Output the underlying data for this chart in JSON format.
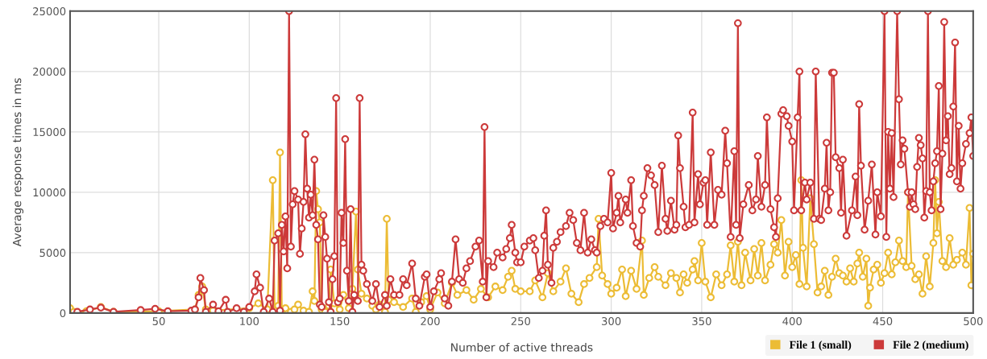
{
  "chart_data": {
    "type": "line",
    "xlabel": "Number of active threads",
    "ylabel": "Average response times in ms",
    "xlim": [
      1,
      500
    ],
    "xticks": [
      50,
      100,
      150,
      200,
      250,
      300,
      350,
      400,
      450,
      500
    ],
    "ylim": [
      0,
      25000
    ],
    "yticks": [
      0,
      5000,
      10000,
      15000,
      20000,
      25000
    ],
    "grid": true,
    "legend": "bottom right",
    "marker": "circle",
    "line_style": "solid",
    "series": [
      {
        "name": "File 1 (small)",
        "color": "#ecbc35",
        "x": [
          1,
          3,
          10,
          18,
          25,
          50,
          70,
          72,
          74,
          76,
          80,
          100,
          105,
          110,
          113,
          114,
          116,
          117,
          118,
          120,
          123,
          125,
          127,
          130,
          133,
          135,
          136,
          137,
          138,
          139,
          140,
          142,
          144,
          145,
          147,
          150,
          152,
          155,
          157,
          159,
          160,
          162,
          165,
          168,
          170,
          172,
          175,
          176,
          177,
          180,
          185,
          190,
          192,
          195,
          198,
          200,
          204,
          208,
          212,
          215,
          220,
          224,
          228,
          232,
          236,
          240,
          243,
          245,
          247,
          250,
          255,
          258,
          262,
          265,
          268,
          272,
          275,
          278,
          282,
          285,
          288,
          292,
          293,
          295,
          298,
          300,
          303,
          306,
          308,
          311,
          314,
          317,
          318,
          321,
          324,
          326,
          330,
          333,
          336,
          338,
          340,
          342,
          345,
          346,
          348,
          350,
          352,
          355,
          358,
          361,
          364,
          366,
          368,
          370,
          372,
          374,
          377,
          379,
          381,
          383,
          385,
          388,
          390,
          392,
          394,
          396,
          398,
          400,
          402,
          404,
          405,
          406,
          408,
          410,
          412,
          414,
          416,
          418,
          420,
          422,
          424,
          426,
          428,
          430,
          432,
          434,
          436,
          437,
          439,
          441,
          442,
          443,
          445,
          447,
          449,
          451,
          453,
          455,
          457,
          459,
          461,
          463,
          464,
          466,
          468,
          470,
          472,
          474,
          476,
          478,
          479,
          480,
          481,
          483,
          485,
          487,
          489,
          491,
          494,
          496,
          498,
          499,
          500
        ],
        "values": [
          400,
          100,
          150,
          500,
          100,
          150,
          300,
          1500,
          2200,
          300,
          200,
          400,
          800,
          300,
          11000,
          200,
          600,
          13300,
          200,
          400,
          100,
          300,
          700,
          200,
          100,
          1800,
          1000,
          10100,
          8600,
          7500,
          300,
          100,
          600,
          3600,
          800,
          300,
          1500,
          400,
          2000,
          8400,
          3600,
          1600,
          1200,
          600,
          300,
          700,
          100,
          7800,
          1100,
          900,
          500,
          1200,
          100,
          900,
          1400,
          300,
          1700,
          800,
          2500,
          1500,
          1900,
          1100,
          2000,
          1300,
          2200,
          1900,
          3000,
          3500,
          2000,
          1800,
          1800,
          2700,
          1300,
          3300,
          1800,
          2600,
          3700,
          1600,
          900,
          2400,
          2900,
          3800,
          7800,
          3100,
          2400,
          1600,
          2100,
          3600,
          1400,
          3500,
          2000,
          6000,
          1500,
          2900,
          3800,
          3000,
          2300,
          3300,
          2900,
          1700,
          3200,
          2500,
          3600,
          4300,
          2700,
          5800,
          2600,
          1300,
          3200,
          2300,
          3200,
          5600,
          2600,
          5900,
          2300,
          5000,
          2700,
          5300,
          3100,
          5800,
          2700,
          4000,
          5700,
          5000,
          7700,
          3100,
          5900,
          3800,
          4800,
          2400,
          11000,
          5400,
          2200,
          9500,
          5700,
          1700,
          2200,
          3500,
          1500,
          3000,
          4500,
          3300,
          3100,
          2600,
          3700,
          2600,
          4100,
          5000,
          3000,
          4500,
          600,
          2100,
          3600,
          4000,
          2500,
          3300,
          5000,
          3200,
          4200,
          6000,
          4300,
          3800,
          10000,
          3900,
          2800,
          3200,
          1600,
          4700,
          2200,
          5800,
          11000,
          6600,
          9200,
          4300,
          3800,
          6200,
          4000,
          4400,
          5000,
          4000,
          8700,
          2300,
          4900
        ]
      },
      {
        "name": "File 2 (medium)",
        "color": "#cc3a3a",
        "x": [
          5,
          12,
          18,
          25,
          40,
          48,
          55,
          68,
          70,
          72,
          73,
          75,
          76,
          80,
          83,
          87,
          88,
          93,
          97,
          100,
          103,
          104,
          106,
          108,
          111,
          113,
          114,
          116,
          117,
          118,
          119,
          120,
          121,
          122,
          123,
          124,
          125,
          127,
          128,
          129,
          130,
          131,
          132,
          133,
          134,
          135,
          136,
          137,
          138,
          139,
          140,
          141,
          142,
          143,
          144,
          145,
          146,
          147,
          148,
          149,
          150,
          151,
          152,
          153,
          154,
          155,
          156,
          157,
          158,
          160,
          161,
          162,
          163,
          165,
          168,
          170,
          172,
          175,
          176,
          178,
          180,
          183,
          185,
          187,
          190,
          192,
          194,
          197,
          198,
          200,
          202,
          205,
          206,
          208,
          210,
          212,
          214,
          216,
          218,
          220,
          222,
          225,
          227,
          229,
          230,
          231,
          232,
          235,
          237,
          240,
          242,
          244,
          245,
          247,
          248,
          250,
          252,
          255,
          257,
          258,
          260,
          262,
          263,
          264,
          265,
          267,
          268,
          270,
          272,
          275,
          277,
          279,
          281,
          283,
          285,
          287,
          289,
          291,
          292,
          294,
          296,
          298,
          300,
          301,
          303,
          304,
          305,
          308,
          309,
          311,
          312,
          314,
          316,
          317,
          318,
          320,
          322,
          324,
          326,
          328,
          330,
          331,
          333,
          335,
          336,
          337,
          338,
          340,
          341,
          343,
          345,
          346,
          348,
          349,
          351,
          352,
          353,
          355,
          357,
          359,
          361,
          363,
          364,
          366,
          368,
          369,
          370,
          371,
          373,
          376,
          378,
          380,
          381,
          383,
          385,
          386,
          388,
          390,
          391,
          392,
          394,
          395,
          397,
          398,
          400,
          401,
          403,
          404,
          405,
          407,
          408,
          410,
          412,
          413,
          415,
          416,
          418,
          419,
          420,
          421,
          422,
          423,
          424,
          426,
          427,
          428,
          430,
          433,
          435,
          436,
          437,
          438,
          440,
          442,
          444,
          446,
          447,
          449,
          451,
          452,
          453,
          454,
          455,
          456,
          458,
          459,
          460,
          461,
          462,
          464,
          465,
          466,
          467,
          468,
          469,
          470,
          471,
          472,
          473,
          474,
          475,
          476,
          477,
          478,
          479,
          480,
          481,
          482,
          483,
          484,
          485,
          486,
          487,
          488,
          489,
          490,
          491,
          492,
          493,
          494,
          496,
          498,
          499,
          500
        ],
        "values": [
          100,
          300,
          450,
          100,
          250,
          350,
          150,
          200,
          300,
          1300,
          2900,
          1900,
          100,
          700,
          150,
          1100,
          100,
          400,
          100,
          500,
          1800,
          3200,
          2100,
          100,
          1200,
          100,
          6000,
          6600,
          200,
          7300,
          5100,
          8000,
          3700,
          25000,
          5500,
          9000,
          10100,
          9400,
          4900,
          7000,
          9200,
          14800,
          10300,
          7900,
          9800,
          8100,
          12700,
          7300,
          6100,
          700,
          500,
          8100,
          6300,
          4500,
          900,
          100,
          2800,
          4700,
          17800,
          900,
          1200,
          8300,
          5800,
          14400,
          3500,
          1000,
          8600,
          100,
          1500,
          1000,
          17800,
          4000,
          3500,
          2400,
          1000,
          2400,
          500,
          1500,
          600,
          2800,
          1500,
          1500,
          2800,
          2300,
          4100,
          1200,
          600,
          3000,
          3200,
          500,
          1800,
          2800,
          3300,
          1200,
          600,
          2600,
          6100,
          2800,
          2500,
          3700,
          4300,
          5500,
          6000,
          2600,
          15400,
          1300,
          4300,
          3800,
          5000,
          4600,
          5300,
          6200,
          7300,
          5000,
          4200,
          4200,
          5500,
          6000,
          6200,
          5200,
          2900,
          3500,
          6400,
          8500,
          4000,
          2500,
          5400,
          5900,
          6700,
          7200,
          8300,
          7700,
          5800,
          5200,
          8300,
          5000,
          6100,
          5200,
          5000,
          7200,
          7800,
          7500,
          11600,
          7000,
          8300,
          9700,
          7500,
          9400,
          8300,
          11000,
          7200,
          5800,
          5500,
          8500,
          9700,
          12000,
          11400,
          10600,
          6700,
          12200,
          7800,
          6800,
          9300,
          6900,
          7300,
          14700,
          12000,
          8800,
          7100,
          7300,
          16600,
          7500,
          11500,
          9000,
          10800,
          11000,
          7300,
          13300,
          7300,
          10200,
          9800,
          15100,
          12400,
          6300,
          13400,
          7300,
          24000,
          6200,
          9000,
          10600,
          8500,
          9400,
          13000,
          8800,
          10600,
          16200,
          8600,
          7100,
          6300,
          9500,
          16500,
          16800,
          16300,
          15500,
          14200,
          8500,
          16200,
          20000,
          8500,
          10800,
          9400,
          10800,
          7800,
          20000,
          7800,
          7700,
          10300,
          14100,
          8500,
          10000,
          19900,
          19900,
          12900,
          12000,
          8300,
          12700,
          6400,
          8500,
          11300,
          8100,
          17300,
          12200,
          6900,
          9300,
          12300,
          6500,
          10000,
          8000,
          25000,
          6300,
          15000,
          10300,
          14900,
          9600,
          25000,
          17700,
          12300,
          14300,
          13600,
          10000,
          8800,
          10000,
          9000,
          8600,
          12100,
          14500,
          13900,
          12800,
          7900,
          10100,
          25000,
          10000,
          8500,
          10900,
          12400,
          13400,
          18800,
          8600,
          13200,
          24100,
          14300,
          16300,
          11500,
          12000,
          17100,
          22400,
          10900,
          15500,
          10300,
          12400,
          14000,
          14900,
          16200,
          13000
        ]
      }
    ]
  }
}
